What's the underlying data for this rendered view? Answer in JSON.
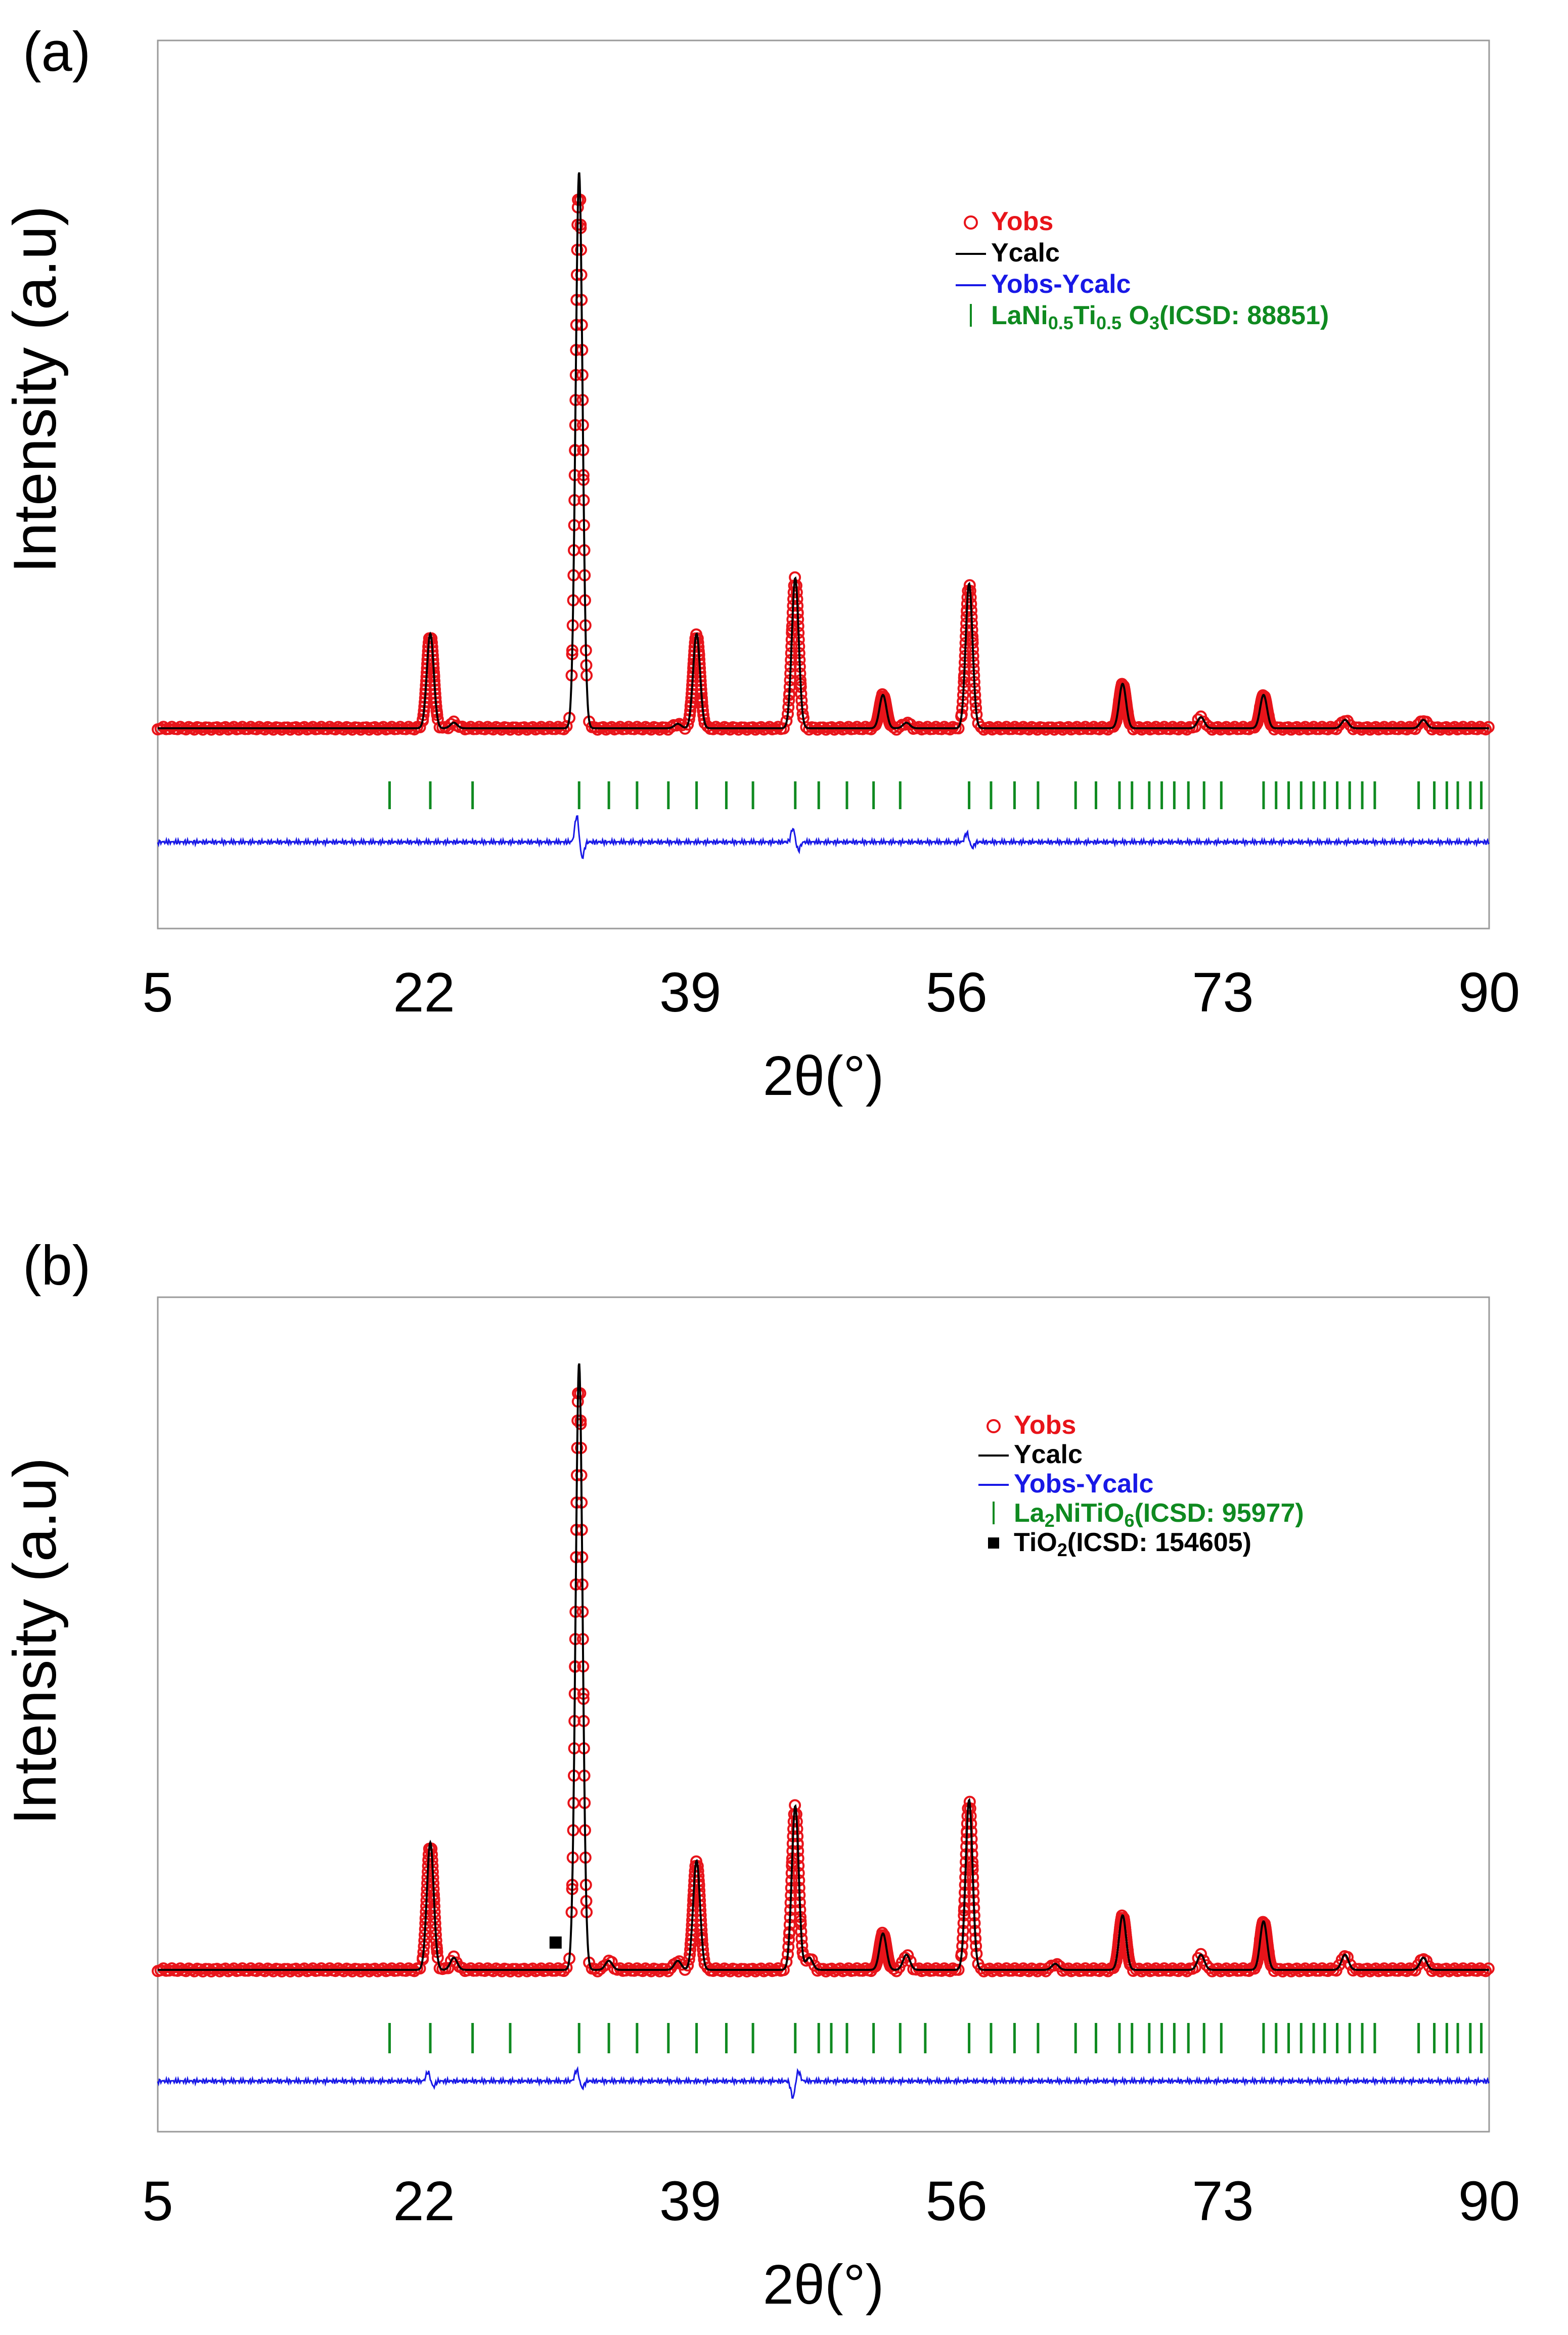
{
  "chart_data": [
    {
      "type": "line",
      "panel_label": "(a)",
      "ylabel": "Intensity (a.u)",
      "xlabel": "2θ(°)",
      "xlim": [
        5,
        90
      ],
      "ylim": [
        -25,
        105
      ],
      "x_ticks": [
        "5",
        "22",
        "39",
        "56",
        "73",
        "90"
      ],
      "x_tick_values": [
        5,
        22,
        39,
        56,
        73,
        90
      ],
      "peaks": [
        {
          "x": 22.4,
          "h": 17
        },
        {
          "x": 23.9,
          "h": 1
        },
        {
          "x": 31.9,
          "h": 100
        },
        {
          "x": 38.2,
          "h": 0.8
        },
        {
          "x": 39.4,
          "h": 17
        },
        {
          "x": 45.7,
          "h": 27
        },
        {
          "x": 51.3,
          "h": 6
        },
        {
          "x": 52.8,
          "h": 1
        },
        {
          "x": 56.8,
          "h": 26
        },
        {
          "x": 66.6,
          "h": 8
        },
        {
          "x": 71.6,
          "h": 2
        },
        {
          "x": 75.6,
          "h": 6
        },
        {
          "x": 80.8,
          "h": 1.5
        },
        {
          "x": 85.8,
          "h": 1.5
        }
      ],
      "bragg_positions": [
        19.8,
        22.4,
        25.1,
        31.9,
        33.8,
        35.6,
        37.6,
        39.4,
        41.3,
        43.0,
        45.7,
        47.2,
        49.0,
        50.7,
        52.4,
        56.8,
        58.2,
        59.7,
        61.2,
        63.6,
        64.9,
        66.4,
        67.2,
        68.3,
        69.1,
        69.9,
        70.8,
        71.8,
        72.9,
        75.6,
        76.4,
        77.2,
        78.0,
        78.8,
        79.5,
        80.3,
        81.1,
        81.9,
        82.7,
        85.5,
        86.5,
        87.3,
        88.0,
        88.8,
        89.5
      ],
      "residual_features": [
        {
          "x": 31.9,
          "amp": 3.5
        },
        {
          "x": 45.7,
          "amp": 1.8
        },
        {
          "x": 56.8,
          "amp": 1.2
        }
      ],
      "legend": [
        {
          "marker": "circle",
          "label": "Yobs",
          "color": "#e8141a"
        },
        {
          "marker": "line",
          "label": "Ycalc",
          "color": "#000000"
        },
        {
          "marker": "line",
          "label": "Yobs-Ycalc",
          "color": "#1818e6"
        },
        {
          "marker": "tick",
          "label_parts": [
            {
              "t": "LaNi"
            },
            {
              "t": "0.5",
              "sub": true
            },
            {
              "t": "Ti"
            },
            {
              "t": "0.5",
              "sub": true
            },
            {
              "t": " O"
            },
            {
              "t": "3",
              "sub": true
            },
            {
              "t": "(ICSD: 88851)"
            }
          ],
          "color": "#0f8a20"
        }
      ]
    },
    {
      "type": "line",
      "panel_label": "(b)",
      "ylabel": "Intensity (a.u)",
      "xlabel": "2θ(°)",
      "xlim": [
        5,
        90
      ],
      "ylim": [
        -25,
        105
      ],
      "x_ticks": [
        "5",
        "22",
        "39",
        "56",
        "73",
        "90"
      ],
      "x_tick_values": [
        5,
        22,
        39,
        56,
        73,
        90
      ],
      "peaks": [
        {
          "x": 22.4,
          "h": 21
        },
        {
          "x": 23.9,
          "h": 2
        },
        {
          "x": 31.9,
          "h": 100
        },
        {
          "x": 33.8,
          "h": 1.5
        },
        {
          "x": 38.2,
          "h": 1.5
        },
        {
          "x": 39.4,
          "h": 18
        },
        {
          "x": 45.7,
          "h": 27
        },
        {
          "x": 46.6,
          "h": 2
        },
        {
          "x": 51.3,
          "h": 6
        },
        {
          "x": 52.8,
          "h": 2.5
        },
        {
          "x": 56.8,
          "h": 28
        },
        {
          "x": 62.3,
          "h": 1
        },
        {
          "x": 66.6,
          "h": 9
        },
        {
          "x": 71.6,
          "h": 2.5
        },
        {
          "x": 75.6,
          "h": 8
        },
        {
          "x": 80.8,
          "h": 2.5
        },
        {
          "x": 85.8,
          "h": 2
        }
      ],
      "bragg_positions": [
        19.8,
        22.4,
        25.1,
        27.5,
        31.9,
        33.8,
        35.6,
        37.6,
        39.4,
        41.3,
        43.0,
        45.7,
        47.2,
        48.0,
        49.0,
        50.7,
        52.4,
        54.0,
        56.8,
        58.2,
        59.7,
        61.2,
        63.6,
        64.9,
        66.4,
        67.2,
        68.3,
        69.1,
        69.9,
        70.8,
        71.8,
        72.9,
        75.6,
        76.4,
        77.2,
        78.0,
        78.8,
        79.5,
        80.3,
        81.1,
        81.9,
        82.7,
        85.5,
        86.5,
        87.3,
        88.0,
        88.8,
        89.5
      ],
      "secondary_phase_markers": [
        {
          "x": 30.4,
          "y": 4.5
        }
      ],
      "residual_features": [
        {
          "x": 22.4,
          "amp": 1.2
        },
        {
          "x": 31.9,
          "amp": 1.5
        },
        {
          "x": 45.7,
          "amp": -2.2
        }
      ],
      "legend": [
        {
          "marker": "circle",
          "label": "Yobs",
          "color": "#e8141a"
        },
        {
          "marker": "line",
          "label": "Ycalc",
          "color": "#000000"
        },
        {
          "marker": "line",
          "label": "Yobs-Ycalc",
          "color": "#1818e6"
        },
        {
          "marker": "tick",
          "label_parts": [
            {
              "t": "La"
            },
            {
              "t": "2",
              "sub": true
            },
            {
              "t": "NiTiO"
            },
            {
              "t": "6",
              "sub": true
            },
            {
              "t": "(ICSD: 95977)"
            }
          ],
          "color": "#0f8a20"
        },
        {
          "marker": "square",
          "label_parts": [
            {
              "t": "TiO"
            },
            {
              "t": "2",
              "sub": true
            },
            {
              "t": "(ICSD: 154605)"
            }
          ],
          "color": "#000000"
        }
      ]
    }
  ],
  "colors": {
    "obs": "#e8141a",
    "calc": "#000000",
    "diff": "#1818e6",
    "bragg": "#0f8a20",
    "frame": "#9a9a9a"
  }
}
